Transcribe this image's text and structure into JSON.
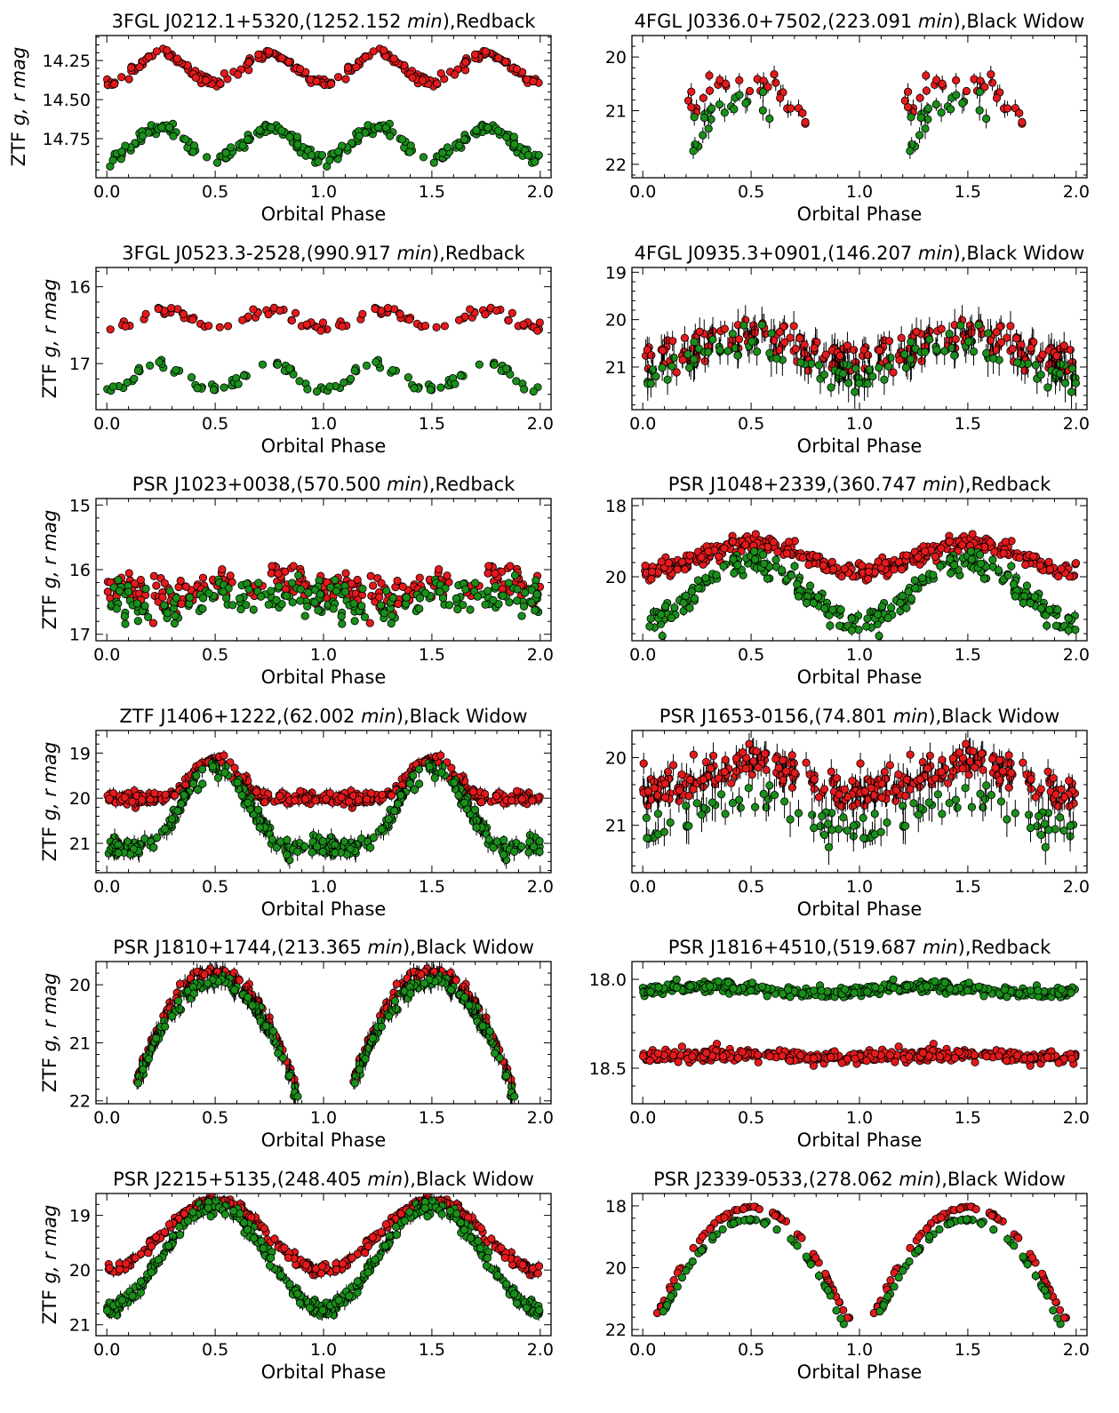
{
  "figure": {
    "ylabel_prefix": "ZTF ",
    "ylabel_vars": "g, r mag",
    "xlabel": "Orbital Phase"
  },
  "colors": {
    "r_band": "#e41a1c",
    "g_band": "#1a8f1a",
    "edge": "#000000",
    "errorbar": "#000000"
  },
  "chart_data": [
    {
      "type": "scatter",
      "title_prefix": "3FGL J0212.1+5320,(1252.152 ",
      "title_unit": "min",
      "title_suffix": "),Redback",
      "xlabel": "Orbital Phase",
      "ylabel": "ZTF g, r mag",
      "show_ylabel": true,
      "xlim": [
        -0.05,
        2.05
      ],
      "ylim": [
        15.0,
        14.09
      ],
      "y_inverted": true,
      "xticks": [
        0.0,
        0.5,
        1.0,
        1.5,
        2.0
      ],
      "xtick_labels": [
        "0.0",
        "0.5",
        "1.0",
        "1.5",
        "2.0"
      ],
      "yticks": [
        14.25,
        14.5,
        14.75
      ],
      "ytick_labels": [
        "14.25",
        "14.50",
        "14.75"
      ],
      "grid": false,
      "series": [
        {
          "band": "r",
          "color": "#e41a1c",
          "model": {
            "kind": "sinusoid",
            "base": 14.3,
            "amp": 0.09,
            "harmonic": 2,
            "peak_phase": 0.25,
            "coverage": [
              0.0,
              1.0
            ],
            "scatter": 0.025,
            "points_per_cycle": 120,
            "err": 0.01
          }
        },
        {
          "band": "g",
          "color": "#1a8f1a",
          "model": {
            "kind": "sinusoid",
            "base": 14.78,
            "amp": 0.1,
            "harmonic": 2,
            "peak_phase": 0.25,
            "coverage": [
              0.0,
              1.0
            ],
            "scatter": 0.03,
            "points_per_cycle": 120,
            "err": 0.01
          }
        }
      ]
    },
    {
      "type": "scatter",
      "title_prefix": "4FGL J0336.0+7502,(223.091 ",
      "title_unit": "min",
      "title_suffix": "),Black Widow",
      "xlabel": "Orbital Phase",
      "ylabel": "ZTF g, r mag",
      "show_ylabel": false,
      "xlim": [
        -0.05,
        2.05
      ],
      "ylim": [
        22.25,
        19.6
      ],
      "y_inverted": true,
      "xticks": [
        0.0,
        0.5,
        1.0,
        1.5,
        2.0
      ],
      "xtick_labels": [
        "0.0",
        "0.5",
        "1.0",
        "1.5",
        "2.0"
      ],
      "yticks": [
        20,
        21,
        22
      ],
      "ytick_labels": [
        "20",
        "21",
        "22"
      ],
      "grid": false,
      "series": [
        {
          "band": "r",
          "color": "#e41a1c",
          "model": {
            "kind": "arch",
            "peak": 20.4,
            "center": 0.45,
            "halfwidth": 0.38,
            "depth": 1.3,
            "coverage": [
              0.2,
              0.76
            ],
            "scatter": 0.22,
            "points_per_cycle": 30,
            "err": 0.12
          }
        },
        {
          "band": "g",
          "color": "#1a8f1a",
          "model": {
            "kind": "arch",
            "peak": 20.95,
            "center": 0.45,
            "halfwidth": 0.3,
            "depth": 1.0,
            "coverage": [
              0.23,
              0.6
            ],
            "scatter": 0.25,
            "points_per_cycle": 22,
            "err": 0.15
          }
        }
      ]
    },
    {
      "type": "scatter",
      "title_prefix": "3FGL J0523.3-2528,(990.917 ",
      "title_unit": "min",
      "title_suffix": "),Redback",
      "xlabel": "Orbital Phase",
      "ylabel": "ZTF g, r mag",
      "show_ylabel": true,
      "xlim": [
        -0.05,
        2.05
      ],
      "ylim": [
        17.6,
        15.75
      ],
      "y_inverted": true,
      "xticks": [
        0.0,
        0.5,
        1.0,
        1.5,
        2.0
      ],
      "xtick_labels": [
        "0.0",
        "0.5",
        "1.0",
        "1.5",
        "2.0"
      ],
      "yticks": [
        16,
        17
      ],
      "ytick_labels": [
        "16",
        "17"
      ],
      "grid": false,
      "series": [
        {
          "band": "r",
          "color": "#e41a1c",
          "model": {
            "kind": "sinusoid",
            "base": 16.42,
            "amp": 0.12,
            "harmonic": 2,
            "peak_phase": 0.25,
            "coverage": [
              0.0,
              1.0
            ],
            "scatter": 0.05,
            "points_per_cycle": 55,
            "err": 0.02
          }
        },
        {
          "band": "g",
          "color": "#1a8f1a",
          "model": {
            "kind": "sinusoid",
            "base": 17.18,
            "amp": 0.18,
            "harmonic": 2,
            "peak_phase": 0.25,
            "coverage": [
              0.0,
              1.0
            ],
            "scatter": 0.06,
            "points_per_cycle": 55,
            "err": 0.02
          }
        }
      ]
    },
    {
      "type": "scatter",
      "title_prefix": "4FGL J0935.3+0901,(146.207 ",
      "title_unit": "min",
      "title_suffix": "),Black Widow",
      "xlabel": "Orbital Phase",
      "ylabel": "ZTF g, r mag",
      "show_ylabel": false,
      "xlim": [
        -0.05,
        2.05
      ],
      "ylim": [
        21.9,
        18.9
      ],
      "y_inverted": true,
      "xticks": [
        0.0,
        0.5,
        1.0,
        1.5,
        2.0
      ],
      "xtick_labels": [
        "0.0",
        "0.5",
        "1.0",
        "1.5",
        "2.0"
      ],
      "yticks": [
        19,
        20,
        21
      ],
      "ytick_labels": [
        "19",
        "20",
        "21"
      ],
      "grid": false,
      "series": [
        {
          "band": "r",
          "color": "#e41a1c",
          "model": {
            "kind": "sinusoid",
            "base": 20.6,
            "amp": 0.3,
            "harmonic": 1,
            "peak_phase": 0.5,
            "coverage": [
              0.0,
              1.0
            ],
            "scatter": 0.3,
            "points_per_cycle": 110,
            "err": 0.25
          }
        },
        {
          "band": "g",
          "color": "#1a8f1a",
          "model": {
            "kind": "sinusoid",
            "base": 20.85,
            "amp": 0.35,
            "harmonic": 1,
            "peak_phase": 0.5,
            "coverage": [
              0.0,
              1.0
            ],
            "scatter": 0.3,
            "points_per_cycle": 60,
            "err": 0.3
          }
        }
      ]
    },
    {
      "type": "scatter",
      "title_prefix": "PSR J1023+0038,(570.500 ",
      "title_unit": "min",
      "title_suffix": "),Redback",
      "xlabel": "Orbital Phase",
      "ylabel": "ZTF g, r mag",
      "show_ylabel": true,
      "xlim": [
        -0.05,
        2.05
      ],
      "ylim": [
        17.1,
        14.9
      ],
      "y_inverted": true,
      "xticks": [
        0.0,
        0.5,
        1.0,
        1.5,
        2.0
      ],
      "xtick_labels": [
        "0.0",
        "0.5",
        "1.0",
        "1.5",
        "2.0"
      ],
      "yticks": [
        15,
        16,
        17
      ],
      "ytick_labels": [
        "15",
        "16",
        "17"
      ],
      "grid": false,
      "series": [
        {
          "band": "r",
          "color": "#e41a1c",
          "model": {
            "kind": "sinusoid",
            "base": 16.25,
            "amp": 0.1,
            "harmonic": 1,
            "peak_phase": 0.75,
            "coverage": [
              0.0,
              1.0
            ],
            "scatter": 0.25,
            "points_per_cycle": 130,
            "err": 0.02
          }
        },
        {
          "band": "g",
          "color": "#1a8f1a",
          "model": {
            "kind": "sinusoid",
            "base": 16.5,
            "amp": 0.1,
            "harmonic": 1,
            "peak_phase": 0.75,
            "coverage": [
              0.0,
              1.0
            ],
            "scatter": 0.28,
            "points_per_cycle": 110,
            "err": 0.02
          }
        }
      ]
    },
    {
      "type": "scatter",
      "title_prefix": "PSR J1048+2339,(360.747 ",
      "title_unit": "min",
      "title_suffix": "),Redback",
      "xlabel": "Orbital Phase",
      "ylabel": "ZTF g, r mag",
      "show_ylabel": false,
      "xlim": [
        -0.05,
        2.05
      ],
      "ylim": [
        21.8,
        17.8
      ],
      "y_inverted": true,
      "xticks": [
        0.0,
        0.5,
        1.0,
        1.5,
        2.0
      ],
      "xtick_labels": [
        "0.0",
        "0.5",
        "1.0",
        "1.5",
        "2.0"
      ],
      "yticks": [
        18,
        20
      ],
      "ytick_labels": [
        "18",
        "20"
      ],
      "grid": false,
      "series": [
        {
          "band": "r",
          "color": "#e41a1c",
          "model": {
            "kind": "sinusoid",
            "base": 19.45,
            "amp": 0.4,
            "harmonic": 1,
            "peak_phase": 0.5,
            "coverage": [
              0.0,
              1.0
            ],
            "scatter": 0.2,
            "points_per_cycle": 190,
            "err": 0.08
          }
        },
        {
          "band": "g",
          "color": "#1a8f1a",
          "model": {
            "kind": "sinusoid",
            "base": 20.4,
            "amp": 0.85,
            "harmonic": 1,
            "peak_phase": 0.5,
            "coverage": [
              0.0,
              1.0
            ],
            "scatter": 0.3,
            "points_per_cycle": 150,
            "err": 0.12
          }
        }
      ]
    },
    {
      "type": "scatter",
      "title_prefix": "ZTF J1406+1222,(62.002 ",
      "title_unit": "min",
      "title_suffix": "),Black Widow",
      "xlabel": "Orbital Phase",
      "ylabel": "ZTF g, r mag",
      "show_ylabel": true,
      "xlim": [
        -0.05,
        2.05
      ],
      "ylim": [
        21.65,
        18.5
      ],
      "y_inverted": true,
      "xticks": [
        0.0,
        0.5,
        1.0,
        1.5,
        2.0
      ],
      "xtick_labels": [
        "0.0",
        "0.5",
        "1.0",
        "1.5",
        "2.0"
      ],
      "yticks": [
        19,
        20,
        21
      ],
      "ytick_labels": [
        "19",
        "20",
        "21"
      ],
      "grid": false,
      "series": [
        {
          "band": "r",
          "color": "#e41a1c",
          "model": {
            "kind": "peaked",
            "base": 20.0,
            "peak": 19.15,
            "center": 0.5,
            "halfwidth": 0.25,
            "coverage": [
              0.0,
              1.0
            ],
            "scatter": 0.12,
            "points_per_cycle": 190,
            "err": 0.1
          }
        },
        {
          "band": "g",
          "color": "#1a8f1a",
          "model": {
            "kind": "peaked",
            "base": 21.1,
            "peak": 19.35,
            "center": 0.5,
            "halfwidth": 0.34,
            "coverage": [
              0.0,
              1.0
            ],
            "scatter": 0.15,
            "points_per_cycle": 160,
            "err": 0.15
          }
        }
      ]
    },
    {
      "type": "scatter",
      "title_prefix": "PSR J1653-0156,(74.801 ",
      "title_unit": "min",
      "title_suffix": "),Black Widow",
      "xlabel": "Orbital Phase",
      "ylabel": "ZTF g, r mag",
      "show_ylabel": false,
      "xlim": [
        -0.05,
        2.05
      ],
      "ylim": [
        21.7,
        19.6
      ],
      "y_inverted": true,
      "xticks": [
        0.0,
        0.5,
        1.0,
        1.5,
        2.0
      ],
      "xtick_labels": [
        "0.0",
        "0.5",
        "1.0",
        "1.5",
        "2.0"
      ],
      "yticks": [
        20,
        21
      ],
      "ytick_labels": [
        "20",
        "21"
      ],
      "grid": false,
      "series": [
        {
          "band": "r",
          "color": "#e41a1c",
          "model": {
            "kind": "sinusoid",
            "base": 20.3,
            "amp": 0.2,
            "harmonic": 1,
            "peak_phase": 0.5,
            "coverage": [
              0.0,
              1.0
            ],
            "scatter": 0.2,
            "points_per_cycle": 150,
            "err": 0.15
          }
        },
        {
          "band": "g",
          "color": "#1a8f1a",
          "model": {
            "kind": "sinusoid",
            "base": 20.85,
            "amp": 0.2,
            "harmonic": 1,
            "peak_phase": 0.5,
            "coverage": [
              0.0,
              1.0
            ],
            "scatter": 0.25,
            "points_per_cycle": 50,
            "err": 0.2
          }
        }
      ]
    },
    {
      "type": "scatter",
      "title_prefix": "PSR J1810+1744,(213.365 ",
      "title_unit": "min",
      "title_suffix": "),Black Widow",
      "xlabel": "Orbital Phase",
      "ylabel": "ZTF g, r mag",
      "show_ylabel": true,
      "xlim": [
        -0.05,
        2.05
      ],
      "ylim": [
        22.05,
        19.6
      ],
      "y_inverted": true,
      "xticks": [
        0.0,
        0.5,
        1.0,
        1.5,
        2.0
      ],
      "xtick_labels": [
        "0.0",
        "0.5",
        "1.0",
        "1.5",
        "2.0"
      ],
      "yticks": [
        20,
        21,
        22
      ],
      "ytick_labels": [
        "20",
        "21",
        "22"
      ],
      "grid": false,
      "series": [
        {
          "band": "r",
          "color": "#e41a1c",
          "model": {
            "kind": "arch",
            "peak": 19.75,
            "center": 0.5,
            "halfwidth": 0.4,
            "depth": 2.3,
            "coverage": [
              0.13,
              0.87
            ],
            "scatter": 0.08,
            "points_per_cycle": 90,
            "err": 0.12
          }
        },
        {
          "band": "g",
          "color": "#1a8f1a",
          "model": {
            "kind": "arch",
            "peak": 19.95,
            "center": 0.5,
            "halfwidth": 0.41,
            "depth": 2.3,
            "coverage": [
              0.14,
              0.89
            ],
            "scatter": 0.1,
            "points_per_cycle": 110,
            "err": 0.15
          }
        }
      ]
    },
    {
      "type": "scatter",
      "title_prefix": "PSR J1816+4510,(519.687 ",
      "title_unit": "min",
      "title_suffix": "),Redback",
      "xlabel": "Orbital Phase",
      "ylabel": "ZTF g, r mag",
      "show_ylabel": false,
      "xlim": [
        -0.05,
        2.05
      ],
      "ylim": [
        18.7,
        17.9
      ],
      "y_inverted": true,
      "xticks": [
        0.0,
        0.5,
        1.0,
        1.5,
        2.0
      ],
      "xtick_labels": [
        "0.0",
        "0.5",
        "1.0",
        "1.5",
        "2.0"
      ],
      "yticks": [
        18.0,
        18.5
      ],
      "ytick_labels": [
        "18.0",
        "18.5"
      ],
      "grid": false,
      "series": [
        {
          "band": "g",
          "color": "#1a8f1a",
          "model": {
            "kind": "sinusoid",
            "base": 18.06,
            "amp": 0.02,
            "harmonic": 1,
            "peak_phase": 0.3,
            "coverage": [
              0.0,
              1.0
            ],
            "scatter": 0.025,
            "points_per_cycle": 220,
            "err": 0.01
          }
        },
        {
          "band": "r",
          "color": "#e41a1c",
          "model": {
            "kind": "sinusoid",
            "base": 18.43,
            "amp": 0.01,
            "harmonic": 1,
            "peak_phase": 0.4,
            "coverage": [
              0.0,
              1.0
            ],
            "scatter": 0.028,
            "points_per_cycle": 220,
            "err": 0.01
          }
        }
      ]
    },
    {
      "type": "scatter",
      "title_prefix": "PSR J2215+5135,(248.405 ",
      "title_unit": "min",
      "title_suffix": "),Black Widow",
      "xlabel": "Orbital Phase",
      "ylabel": "ZTF g, r mag",
      "show_ylabel": true,
      "xlim": [
        -0.05,
        2.05
      ],
      "ylim": [
        21.2,
        18.6
      ],
      "y_inverted": true,
      "xticks": [
        0.0,
        0.5,
        1.0,
        1.5,
        2.0
      ],
      "xtick_labels": [
        "0.0",
        "0.5",
        "1.0",
        "1.5",
        "2.0"
      ],
      "yticks": [
        19,
        20,
        21
      ],
      "ytick_labels": [
        "19",
        "20",
        "21"
      ],
      "grid": false,
      "series": [
        {
          "band": "r",
          "color": "#e41a1c",
          "model": {
            "kind": "peaked",
            "base": 20.0,
            "peak": 18.72,
            "center": 0.5,
            "halfwidth": 0.5,
            "coverage": [
              0.0,
              1.0
            ],
            "scatter": 0.08,
            "points_per_cycle": 200,
            "err": 0.08
          }
        },
        {
          "band": "g",
          "color": "#1a8f1a",
          "model": {
            "kind": "peaked",
            "base": 20.7,
            "peak": 18.82,
            "center": 0.5,
            "halfwidth": 0.5,
            "coverage": [
              0.0,
              1.0
            ],
            "scatter": 0.1,
            "points_per_cycle": 200,
            "err": 0.1
          }
        }
      ]
    },
    {
      "type": "scatter",
      "title_prefix": "PSR J2339-0533,(278.062 ",
      "title_unit": "min",
      "title_suffix": "),Black Widow",
      "xlabel": "Orbital Phase",
      "ylabel": "ZTF g, r mag",
      "show_ylabel": false,
      "xlim": [
        -0.05,
        2.05
      ],
      "ylim": [
        22.2,
        17.6
      ],
      "y_inverted": true,
      "xticks": [
        0.0,
        0.5,
        1.0,
        1.5,
        2.0
      ],
      "xtick_labels": [
        "0.0",
        "0.5",
        "1.0",
        "1.5",
        "2.0"
      ],
      "yticks": [
        18,
        20,
        22
      ],
      "ytick_labels": [
        "18",
        "20",
        "22"
      ],
      "grid": false,
      "series": [
        {
          "band": "r",
          "color": "#e41a1c",
          "model": {
            "kind": "arch",
            "peak": 18.05,
            "center": 0.5,
            "halfwidth": 0.44,
            "depth": 3.6,
            "coverage": [
              0.04,
              0.96
            ],
            "scatter": 0.05,
            "points_per_cycle": 70,
            "err": 0.1
          }
        },
        {
          "band": "g",
          "color": "#1a8f1a",
          "model": {
            "kind": "arch",
            "peak": 18.45,
            "center": 0.5,
            "halfwidth": 0.43,
            "depth": 3.4,
            "coverage": [
              0.08,
              0.93
            ],
            "scatter": 0.06,
            "points_per_cycle": 60,
            "err": 0.12
          }
        }
      ]
    }
  ]
}
